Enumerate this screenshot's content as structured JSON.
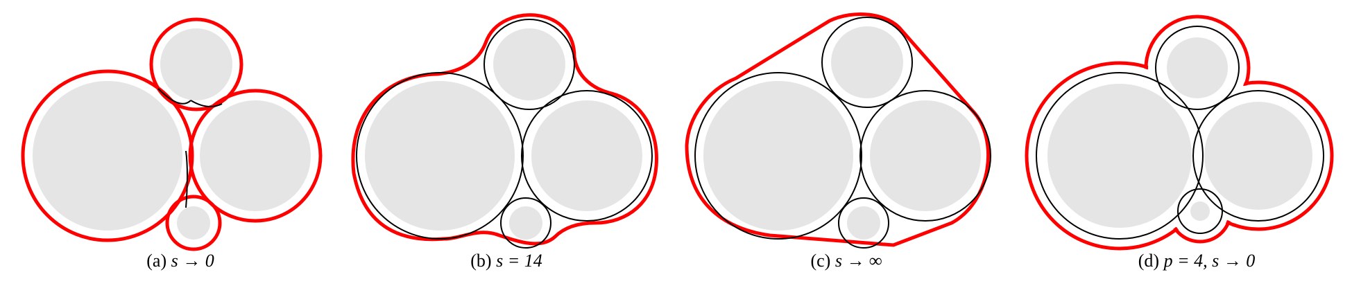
{
  "colors": {
    "fill": "#e5e5e5",
    "boundary": "#ff0000",
    "outline": "#000000",
    "background": "#ffffff"
  },
  "captions": [
    {
      "label": "(a)",
      "math": "s → 0"
    },
    {
      "label": "(b)",
      "math": "s = 14"
    },
    {
      "label": "(c)",
      "math": "s → ∞"
    },
    {
      "label": "(d)",
      "math": "p = 4, s → 0"
    }
  ]
}
